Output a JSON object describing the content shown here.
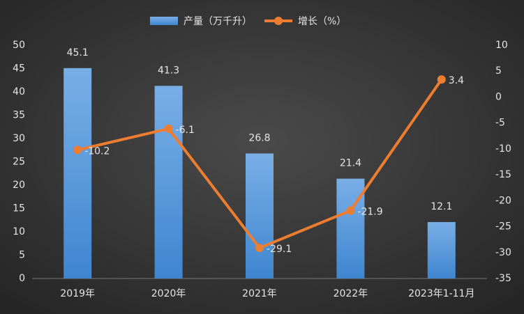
{
  "chart_data": {
    "type": "bar-line",
    "categories": [
      "2019年",
      "2020年",
      "2021年",
      "2022年",
      "2023年1-11月"
    ],
    "series": [
      {
        "name": "产量（万千升）",
        "type": "bar",
        "color": "#5b9bd5",
        "values": [
          45.1,
          41.3,
          26.8,
          21.4,
          12.1
        ]
      },
      {
        "name": "增长（%）",
        "type": "line",
        "axis": "y2",
        "color": "#ed7d31",
        "values": [
          -10.2,
          -6.1,
          -29.1,
          -21.9,
          3.4
        ]
      }
    ],
    "ylim": [
      0,
      50
    ],
    "yticks": [
      0,
      5,
      10,
      15,
      20,
      25,
      30,
      35,
      40,
      45,
      50
    ],
    "y2lim": [
      -35,
      10
    ],
    "y2ticks": [
      -35,
      -30,
      -25,
      -20,
      -15,
      -10,
      -5,
      0,
      5,
      10
    ],
    "legend": "top"
  }
}
